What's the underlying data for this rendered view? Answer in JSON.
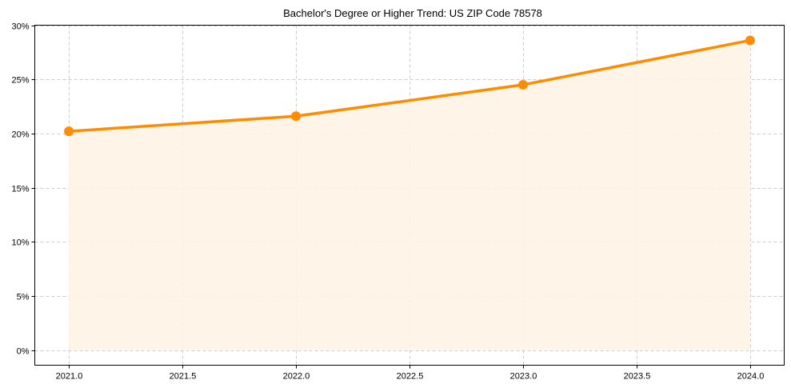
{
  "chart_data": {
    "type": "line",
    "title": "Bachelor's Degree or Higher Trend: US ZIP Code 78578",
    "xlabel": "",
    "ylabel": "",
    "x": [
      2021,
      2022,
      2023,
      2024
    ],
    "series": [
      {
        "name": "Bachelor's Degree or Higher",
        "values": [
          20.2,
          21.6,
          24.5,
          28.6
        ],
        "unit": "%",
        "filled_area": true
      }
    ],
    "x_ticks": [
      "2021.0",
      "2021.5",
      "2022.0",
      "2022.5",
      "2023.0",
      "2023.5",
      "2024.0"
    ],
    "x_tick_values": [
      2021.0,
      2021.5,
      2022.0,
      2022.5,
      2023.0,
      2023.5,
      2024.0
    ],
    "y_ticks": [
      "0%",
      "5%",
      "10%",
      "15%",
      "20%",
      "25%",
      "30%"
    ],
    "y_tick_values": [
      0,
      5,
      10,
      15,
      20,
      25,
      30
    ],
    "xlim": [
      2020.85,
      2024.15
    ],
    "ylim": [
      -1.4,
      30
    ],
    "grid": true,
    "legend": "none"
  },
  "colors": {
    "line": "#ff8c00",
    "fill": "#fff3e6",
    "grid": "#cccccc"
  }
}
